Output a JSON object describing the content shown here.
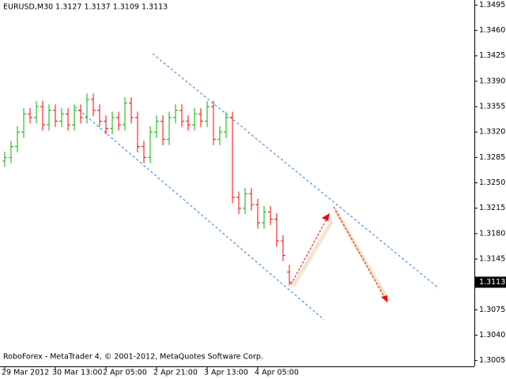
{
  "chart_data": {
    "type": "ohlc",
    "title": "EURUSD,M30  1.3127 1.3137 1.3109 1.3113",
    "footer": "RoboForex - MetaTrader 4, © 2001-2012, MetaQuotes Software Corp.",
    "last_price": 1.3113,
    "up_color": "#00b400",
    "down_color": "#ff0000",
    "categories": [
      "29 Mar 2012",
      null,
      null,
      null,
      null,
      null,
      null,
      null,
      "30 Mar 13:00",
      null,
      null,
      null,
      null,
      null,
      null,
      null,
      "2 Apr 05:00",
      null,
      null,
      null,
      null,
      null,
      null,
      null,
      "2 Apr 21:00",
      null,
      null,
      null,
      null,
      null,
      null,
      null,
      "3 Apr 13:00",
      null,
      null,
      null,
      null,
      null,
      null,
      null,
      "4 Apr 05:00",
      null,
      null,
      null,
      null,
      null
    ],
    "open": [
      1.328,
      1.3285,
      1.33,
      1.332,
      1.3345,
      1.334,
      1.3355,
      1.333,
      1.335,
      1.3335,
      1.3345,
      1.333,
      1.335,
      1.334,
      1.3365,
      1.335,
      1.3335,
      1.3325,
      1.334,
      1.333,
      1.336,
      1.334,
      1.33,
      1.3285,
      1.332,
      1.3335,
      1.331,
      1.334,
      1.335,
      1.3335,
      1.333,
      1.3345,
      1.3335,
      1.3355,
      1.331,
      1.332,
      1.334,
      1.323,
      1.3215,
      1.3235,
      1.322,
      1.3195,
      1.321,
      1.32,
      1.317,
      1.3127
    ],
    "high": [
      1.3293,
      1.3308,
      1.3328,
      1.3353,
      1.3353,
      1.3363,
      1.3363,
      1.3358,
      1.3358,
      1.3353,
      1.3353,
      1.3358,
      1.3358,
      1.3373,
      1.3373,
      1.3358,
      1.3343,
      1.3348,
      1.3348,
      1.3368,
      1.3368,
      1.3348,
      1.3308,
      1.3328,
      1.3343,
      1.3343,
      1.3348,
      1.3358,
      1.3358,
      1.3343,
      1.3353,
      1.3353,
      1.3363,
      1.3363,
      1.3328,
      1.3348,
      1.3348,
      1.3238,
      1.3243,
      1.3243,
      1.3228,
      1.3218,
      1.3218,
      1.3208,
      1.3178,
      1.3137
    ],
    "low": [
      1.3272,
      1.3277,
      1.3292,
      1.3312,
      1.3332,
      1.3332,
      1.3322,
      1.3322,
      1.3327,
      1.3327,
      1.3322,
      1.3322,
      1.3332,
      1.3332,
      1.3342,
      1.3327,
      1.3317,
      1.3317,
      1.3322,
      1.3322,
      1.3332,
      1.3292,
      1.3277,
      1.3277,
      1.3312,
      1.3302,
      1.3302,
      1.3332,
      1.3327,
      1.3322,
      1.3322,
      1.3327,
      1.3327,
      1.3302,
      1.3302,
      1.3312,
      1.3222,
      1.3207,
      1.3207,
      1.3212,
      1.3187,
      1.3187,
      1.3192,
      1.3162,
      1.3142,
      1.3109
    ],
    "close": [
      1.3285,
      1.33,
      1.332,
      1.3345,
      1.334,
      1.3355,
      1.333,
      1.335,
      1.3335,
      1.3345,
      1.333,
      1.335,
      1.334,
      1.3365,
      1.335,
      1.3335,
      1.3325,
      1.334,
      1.333,
      1.336,
      1.334,
      1.33,
      1.3285,
      1.332,
      1.3335,
      1.331,
      1.334,
      1.335,
      1.3335,
      1.333,
      1.3345,
      1.3335,
      1.3355,
      1.331,
      1.332,
      1.334,
      1.323,
      1.3215,
      1.3235,
      1.322,
      1.3195,
      1.321,
      1.32,
      1.317,
      1.315,
      1.3113
    ],
    "ylim": [
      1.2997,
      1.3502
    ],
    "yticks": [
      1.3495,
      {
        "value": 1.346,
        "label": "1.3460"
      },
      1.3425,
      {
        "value": 1.339,
        "label": "1.3390"
      },
      1.3355,
      {
        "value": 1.332,
        "label": "1.3320"
      },
      1.3285,
      {
        "value": 1.325,
        "label": "1.3250"
      },
      1.3215,
      {
        "value": 1.318,
        "label": "1.3180"
      },
      1.3145,
      1.3075,
      {
        "value": 1.304,
        "label": "1.3040"
      },
      1.3005
    ]
  }
}
